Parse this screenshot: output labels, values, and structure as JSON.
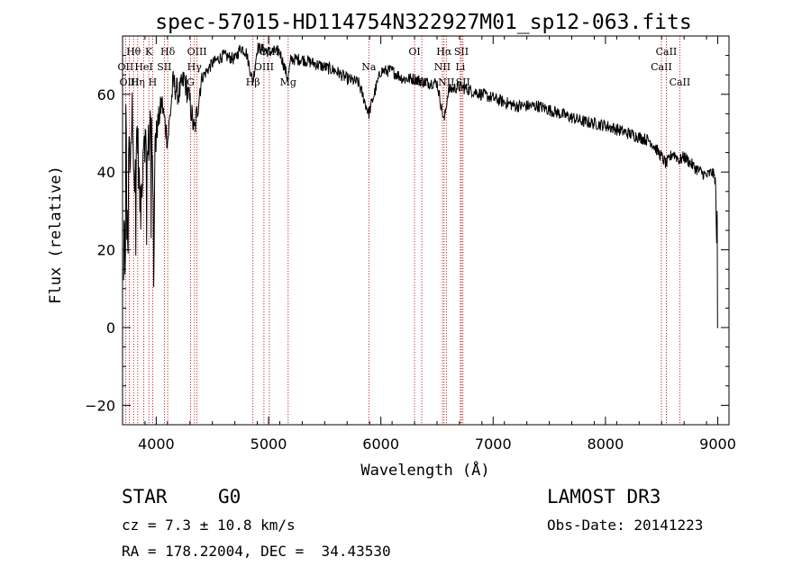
{
  "chart_data": {
    "type": "line",
    "title": "spec-57015-HD114754N322927M01_sp12-063.fits",
    "xlabel": "Wavelength (Å)",
    "ylabel": "Flux (relative)",
    "xlim": [
      3700,
      9100
    ],
    "ylim": [
      -25,
      75
    ],
    "xticks": [
      4000,
      5000,
      6000,
      7000,
      8000,
      9000
    ],
    "yticks": [
      -20,
      0,
      20,
      40,
      60
    ],
    "line_color": "#000000",
    "marker_color": "#c00000",
    "spectrum_anchors": [
      [
        3710,
        10
      ],
      [
        3725,
        50
      ],
      [
        3740,
        60
      ],
      [
        3760,
        43
      ],
      [
        3790,
        56
      ],
      [
        3810,
        35
      ],
      [
        3830,
        52
      ],
      [
        3860,
        28
      ],
      [
        3890,
        52
      ],
      [
        3920,
        42
      ],
      [
        3950,
        55
      ],
      [
        3970,
        36
      ],
      [
        4000,
        50
      ],
      [
        4050,
        58
      ],
      [
        4102,
        48
      ],
      [
        4150,
        63
      ],
      [
        4200,
        60
      ],
      [
        4250,
        64
      ],
      [
        4300,
        58
      ],
      [
        4340,
        50
      ],
      [
        4400,
        64
      ],
      [
        4500,
        68
      ],
      [
        4600,
        70
      ],
      [
        4700,
        69
      ],
      [
        4750,
        72
      ],
      [
        4800,
        71
      ],
      [
        4861,
        63
      ],
      [
        4900,
        72
      ],
      [
        5000,
        71
      ],
      [
        5100,
        71
      ],
      [
        5172,
        64
      ],
      [
        5200,
        69
      ],
      [
        5300,
        69
      ],
      [
        5400,
        68
      ],
      [
        5500,
        67
      ],
      [
        5600,
        66
      ],
      [
        5700,
        64
      ],
      [
        5800,
        63
      ],
      [
        5893,
        55
      ],
      [
        5950,
        61
      ],
      [
        6000,
        66
      ],
      [
        6100,
        66
      ],
      [
        6200,
        64
      ],
      [
        6300,
        64
      ],
      [
        6400,
        63
      ],
      [
        6500,
        63
      ],
      [
        6563,
        53
      ],
      [
        6600,
        61
      ],
      [
        6700,
        62
      ],
      [
        6800,
        61
      ],
      [
        7000,
        59
      ],
      [
        7200,
        57
      ],
      [
        7400,
        57
      ],
      [
        7600,
        55
      ],
      [
        7800,
        53
      ],
      [
        8000,
        52
      ],
      [
        8200,
        50
      ],
      [
        8400,
        48
      ],
      [
        8498,
        44
      ],
      [
        8542,
        42
      ],
      [
        8600,
        45
      ],
      [
        8662,
        43
      ],
      [
        8700,
        44
      ],
      [
        8800,
        41
      ],
      [
        8900,
        39
      ],
      [
        8950,
        40
      ],
      [
        8980,
        38
      ],
      [
        9000,
        3
      ]
    ],
    "lines": [
      {
        "label": "Hθ",
        "x": 3798,
        "row": 0
      },
      {
        "label": "OII",
        "x": 3727,
        "row": 1
      },
      {
        "label": "OIII",
        "x": 3760,
        "row": 2
      },
      {
        "label": "Hη",
        "x": 3835,
        "row": 2
      },
      {
        "label": "HeI",
        "x": 3889,
        "row": 1
      },
      {
        "label": "K",
        "x": 3934,
        "row": 0
      },
      {
        "label": "H",
        "x": 3968,
        "row": 2
      },
      {
        "label": "SII",
        "x": 4072,
        "row": 1
      },
      {
        "label": "Hδ",
        "x": 4102,
        "row": 0
      },
      {
        "label": "OIII",
        "x": 4363,
        "row": 0
      },
      {
        "label": "Hγ",
        "x": 4340,
        "row": 1
      },
      {
        "label": "G",
        "x": 4305,
        "row": 2
      },
      {
        "label": "Hβ",
        "x": 4861,
        "row": 2
      },
      {
        "label": "OIII",
        "x": 4959,
        "row": 1
      },
      {
        "label": "OIII",
        "x": 5007,
        "row": 0
      },
      {
        "label": "Mg",
        "x": 5175,
        "row": 2
      },
      {
        "label": "Na",
        "x": 5893,
        "row": 1
      },
      {
        "label": "OI",
        "x": 6300,
        "row": 0
      },
      {
        "label": "OI",
        "x": 6364,
        "row": 2
      },
      {
        "label": "NII",
        "x": 6548,
        "row": 1
      },
      {
        "label": "Hα",
        "x": 6563,
        "row": 0
      },
      {
        "label": "NII",
        "x": 6583,
        "row": 2
      },
      {
        "label": "SII",
        "x": 6717,
        "row": 0
      },
      {
        "label": "Li",
        "x": 6708,
        "row": 1
      },
      {
        "label": "SII",
        "x": 6731,
        "row": 2
      },
      {
        "label": "CaII",
        "x": 8498,
        "row": 1
      },
      {
        "label": "CaII",
        "x": 8542,
        "row": 0
      },
      {
        "label": "CaII",
        "x": 8662,
        "row": 2
      }
    ]
  },
  "info": {
    "class": "STAR",
    "subclass": "G0",
    "survey": "LAMOST DR3",
    "cz": "cz = 7.3 ± 10.8 km/s",
    "obs_date": "Obs-Date: 20141223",
    "coords": "RA = 178.22004, DEC =  34.43530"
  }
}
